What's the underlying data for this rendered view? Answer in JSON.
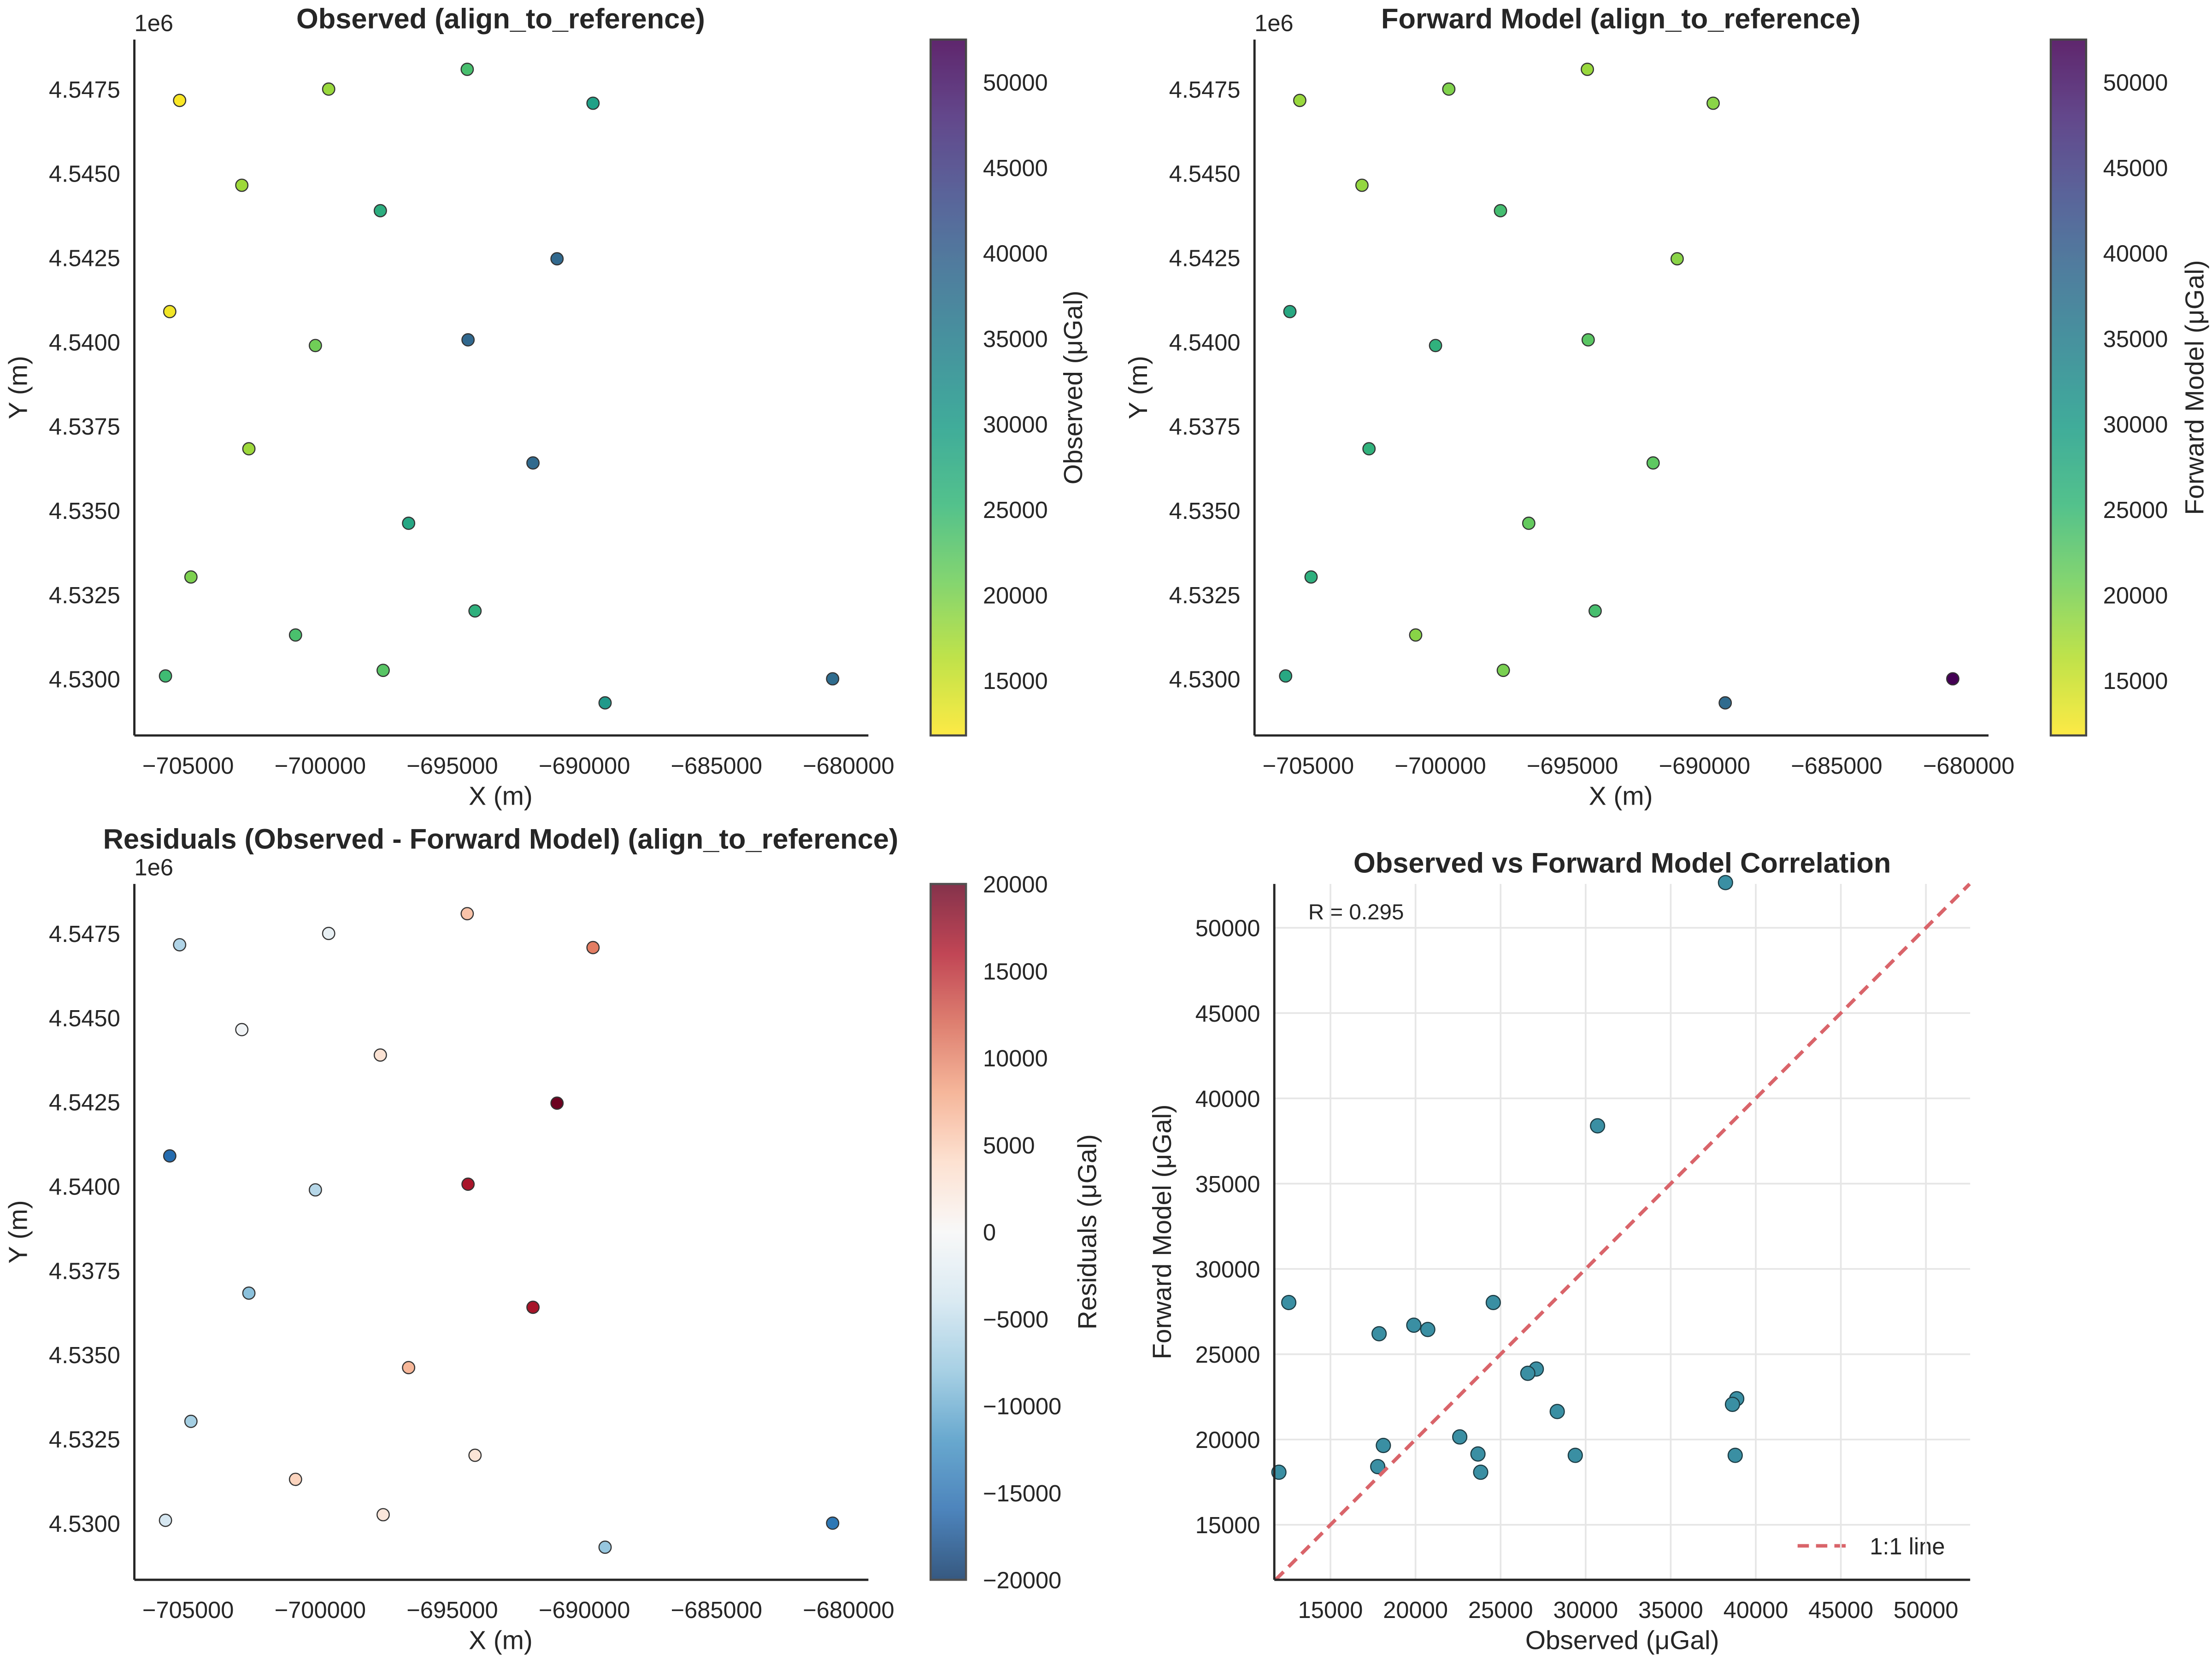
{
  "chart_data": [
    {
      "type": "scatter",
      "title": "Observed  (align_to_reference)",
      "xlabel": "X (m)",
      "ylabel": "Y (m)",
      "y_offset_label": "1e6",
      "colorbar_label_display": "Observed (μGal)",
      "colormap": "viridis_r",
      "color_range": [
        11780,
        52480
      ],
      "colorbar_ticks": [
        15000,
        20000,
        25000,
        30000,
        35000,
        40000,
        45000,
        50000
      ],
      "xticks": [
        -705000,
        -700000,
        -695000,
        -690000,
        -685000,
        -680000
      ],
      "yticks": [
        4.53,
        4.5325,
        4.535,
        4.5375,
        4.54,
        4.5425,
        4.545,
        4.5475
      ],
      "value_key": "observed"
    },
    {
      "type": "scatter",
      "title": "Forward Model  (align_to_reference)",
      "xlabel": "X (m)",
      "ylabel": "Y (m)",
      "y_offset_label": "1e6",
      "colorbar_label_display": "Forward Model (μGal)",
      "colormap": "viridis_r",
      "color_range": [
        11780,
        52480
      ],
      "colorbar_ticks": [
        15000,
        20000,
        25000,
        30000,
        35000,
        40000,
        45000,
        50000
      ],
      "xticks": [
        -705000,
        -700000,
        -695000,
        -690000,
        -685000,
        -680000
      ],
      "yticks": [
        4.53,
        4.5325,
        4.535,
        4.5375,
        4.54,
        4.5425,
        4.545,
        4.5475
      ],
      "value_key": "forward"
    },
    {
      "type": "scatter",
      "title": "Residuals (Observed - Forward Model) (align_to_reference)",
      "xlabel": "X (m)",
      "ylabel": "Y (m)",
      "y_offset_label": "1e6",
      "colorbar_label_display": "Residuals (μGal)",
      "colormap": "RdBu_r",
      "color_range": [
        -20000,
        20000
      ],
      "colorbar_ticks": [
        -20000,
        -15000,
        -10000,
        -5000,
        0,
        5000,
        10000,
        15000,
        20000
      ],
      "xticks": [
        -705000,
        -700000,
        -695000,
        -690000,
        -685000,
        -680000
      ],
      "yticks": [
        4.53,
        4.5325,
        4.535,
        4.5375,
        4.54,
        4.5425,
        4.545,
        4.5475
      ],
      "value_key": "residual"
    },
    {
      "type": "scatter",
      "title": "Observed vs Forward Model Correlation",
      "xlabel": "Observed (μGal)",
      "ylabel": "Forward Model (μGal)",
      "annotation": "R = 0.295",
      "legend": [
        {
          "label": "1:1 line",
          "color": "#d9646a",
          "style": "dashed"
        }
      ],
      "legend_position": "lower-right",
      "grid": true,
      "xlim": [
        11700,
        52600
      ],
      "ylim": [
        11774,
        52570
      ],
      "xticks": [
        15000,
        20000,
        25000,
        30000,
        35000,
        40000,
        45000,
        50000
      ],
      "yticks": [
        15000,
        20000,
        25000,
        30000,
        35000,
        40000,
        45000,
        50000
      ],
      "point_color": "#3a8fa3"
    }
  ],
  "stations": [
    {
      "x": -705321,
      "y": 4547164,
      "observed": 11970,
      "forward": 18080,
      "residual": -6110
    },
    {
      "x": -699680,
      "y": 4547500,
      "observed": 18110,
      "forward": 19650,
      "residual": -1540
    },
    {
      "x": -694435,
      "y": 4548087,
      "observed": 23830,
      "forward": 18080,
      "residual": 5750
    },
    {
      "x": -689674,
      "y": 4547081,
      "observed": 29390,
      "forward": 19070,
      "residual": 10320
    },
    {
      "x": -702967,
      "y": 4544647,
      "observed": 17780,
      "forward": 18410,
      "residual": -630
    },
    {
      "x": -697724,
      "y": 4543892,
      "observed": 27100,
      "forward": 24130,
      "residual": 2970
    },
    {
      "x": -691036,
      "y": 4542465,
      "observed": 38790,
      "forward": 19070,
      "residual": 19720
    },
    {
      "x": -705695,
      "y": 4540899,
      "observed": 12550,
      "forward": 28030,
      "residual": -15480
    },
    {
      "x": -700182,
      "y": 4539892,
      "observed": 20720,
      "forward": 26450,
      "residual": -5730
    },
    {
      "x": -694404,
      "y": 4540060,
      "observed": 38880,
      "forward": 22390,
      "residual": 16490
    },
    {
      "x": -702700,
      "y": 4536828,
      "observed": 17860,
      "forward": 26200,
      "residual": -8340
    },
    {
      "x": -691946,
      "y": 4536408,
      "observed": 38630,
      "forward": 22060,
      "residual": 16570
    },
    {
      "x": -696654,
      "y": 4534618,
      "observed": 28330,
      "forward": 21640,
      "residual": 6690
    },
    {
      "x": -704893,
      "y": 4533024,
      "observed": 19900,
      "forward": 26700,
      "residual": -6800
    },
    {
      "x": -694140,
      "y": 4532017,
      "observed": 26600,
      "forward": 23880,
      "residual": 2720
    },
    {
      "x": -700934,
      "y": 4531303,
      "observed": 23670,
      "forward": 19150,
      "residual": 4520
    },
    {
      "x": -697617,
      "y": 4530254,
      "observed": 22600,
      "forward": 20150,
      "residual": 2450
    },
    {
      "x": -705856,
      "y": 4530087,
      "observed": 24570,
      "forward": 28030,
      "residual": -3460
    },
    {
      "x": -689217,
      "y": 4529289,
      "observed": 30700,
      "forward": 38390,
      "residual": -7690
    },
    {
      "x": -680604,
      "y": 4530003,
      "observed": 38220,
      "forward": 52650,
      "residual": -14430
    }
  ]
}
